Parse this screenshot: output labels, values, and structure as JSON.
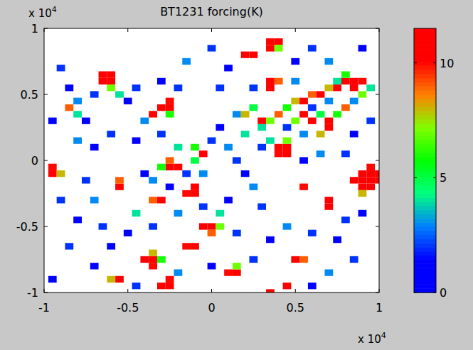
{
  "chart_data": {
    "type": "heatmap",
    "title": "BT1231 forcing(K)",
    "x_multiplier": {
      "text": "x 10",
      "exponent": "4"
    },
    "y_multiplier": {
      "text": "x 10",
      "exponent": "4"
    },
    "xlim": [
      -1,
      1
    ],
    "ylim": [
      -1,
      1
    ],
    "xticks": [
      -1,
      -0.5,
      0,
      0.5,
      1
    ],
    "yticks": [
      -1,
      -0.5,
      0,
      0.5,
      1
    ],
    "cell_size": 0.05,
    "cells": [
      [
        -0.65,
        0.6,
        12
      ],
      [
        -0.6,
        0.6,
        12
      ],
      [
        -0.65,
        0.65,
        11
      ],
      [
        -0.6,
        0.65,
        11
      ],
      [
        -0.25,
        0.4,
        12
      ],
      [
        -0.3,
        0.4,
        11
      ],
      [
        -0.25,
        0.45,
        10
      ],
      [
        0.2,
        0.8,
        12
      ],
      [
        0.25,
        0.8,
        11
      ],
      [
        0.35,
        0.9,
        12
      ],
      [
        0.35,
        0.85,
        11
      ],
      [
        0.4,
        0.9,
        12
      ],
      [
        0.35,
        0.6,
        12
      ],
      [
        0.35,
        0.55,
        11
      ],
      [
        0.4,
        0.6,
        9
      ],
      [
        0.15,
        0.35,
        3
      ],
      [
        0.2,
        0.35,
        8
      ],
      [
        0.25,
        0.4,
        5
      ],
      [
        0.3,
        0.3,
        11
      ],
      [
        0.35,
        0.3,
        7
      ],
      [
        0.3,
        0.25,
        4
      ],
      [
        0.4,
        0.35,
        9
      ],
      [
        0.45,
        0.4,
        6
      ],
      [
        0.5,
        0.45,
        8
      ],
      [
        0.55,
        0.45,
        11
      ],
      [
        0.6,
        0.5,
        9
      ],
      [
        0.65,
        0.5,
        12
      ],
      [
        0.7,
        0.55,
        8
      ],
      [
        0.75,
        0.55,
        11
      ],
      [
        0.8,
        0.6,
        12
      ],
      [
        0.85,
        0.6,
        12
      ],
      [
        0.85,
        0.55,
        11
      ],
      [
        0.9,
        0.6,
        10
      ],
      [
        0.8,
        0.65,
        6
      ],
      [
        0.75,
        0.6,
        4
      ],
      [
        0.7,
        0.45,
        3
      ],
      [
        0.6,
        0.4,
        2
      ],
      [
        0.65,
        0.35,
        5
      ],
      [
        0.55,
        0.35,
        12
      ],
      [
        0.6,
        0.3,
        11
      ],
      [
        0.5,
        0.3,
        7
      ],
      [
        0.45,
        0.25,
        2
      ],
      [
        0.7,
        0.3,
        12
      ],
      [
        0.7,
        0.25,
        11
      ],
      [
        0.75,
        0.35,
        6
      ],
      [
        0.8,
        0.4,
        9
      ],
      [
        0.85,
        0.45,
        3
      ],
      [
        0.9,
        0.5,
        7
      ],
      [
        0.95,
        0.55,
        4
      ],
      [
        0.65,
        0.2,
        8
      ],
      [
        0.55,
        0.2,
        3
      ],
      [
        0.45,
        0.1,
        12
      ],
      [
        0.4,
        0.1,
        12
      ],
      [
        0.45,
        0.05,
        11
      ],
      [
        0.4,
        0.05,
        10
      ],
      [
        0.35,
        0.15,
        4
      ],
      [
        0.95,
        -0.15,
        13
      ],
      [
        0.9,
        -0.15,
        13
      ],
      [
        0.95,
        -0.1,
        13
      ],
      [
        0.9,
        -0.1,
        12
      ],
      [
        0.95,
        -0.2,
        13
      ],
      [
        0.9,
        -0.2,
        12
      ],
      [
        0.85,
        -0.15,
        11
      ],
      [
        0.95,
        -0.05,
        10
      ],
      [
        1.0,
        -0.15,
        13
      ],
      [
        1.0,
        -0.1,
        13
      ],
      [
        -0.25,
        -0.05,
        12
      ],
      [
        -0.2,
        -0.05,
        11
      ],
      [
        -0.25,
        0,
        9
      ],
      [
        -0.1,
        -0.25,
        12
      ],
      [
        -0.15,
        -0.25,
        10
      ],
      [
        -0.1,
        -0.2,
        11
      ],
      [
        -0.3,
        -0.3,
        12
      ],
      [
        -0.35,
        -0.3,
        9
      ],
      [
        -0.95,
        -0.1,
        12
      ],
      [
        -0.95,
        -0.05,
        10
      ],
      [
        -0.9,
        -0.1,
        8
      ],
      [
        -0.55,
        -0.2,
        12
      ],
      [
        -0.55,
        -0.15,
        9
      ],
      [
        0.7,
        -0.3,
        12
      ],
      [
        0.7,
        -0.35,
        11
      ],
      [
        0,
        -0.5,
        12
      ],
      [
        -0.05,
        -0.5,
        11
      ],
      [
        0,
        -0.55,
        9
      ],
      [
        -0.35,
        -0.75,
        12
      ],
      [
        -0.4,
        -0.75,
        11
      ],
      [
        -0.35,
        -0.8,
        10
      ],
      [
        -0.3,
        -0.75,
        6
      ],
      [
        -0.25,
        -0.95,
        12
      ],
      [
        -0.3,
        -0.95,
        11
      ],
      [
        -0.25,
        -0.9,
        10
      ],
      [
        -0.55,
        -0.9,
        11
      ],
      [
        -0.6,
        -0.9,
        8
      ],
      [
        0.15,
        -0.85,
        12
      ],
      [
        0.1,
        -0.85,
        10
      ],
      [
        0.5,
        -0.75,
        11
      ],
      [
        0.55,
        -0.75,
        9
      ],
      [
        -0.1,
        -0.65,
        12
      ],
      [
        -0.15,
        -0.65,
        10
      ],
      [
        -0.05,
        0.05,
        11
      ],
      [
        -0.1,
        0.1,
        6
      ],
      [
        -0.35,
        0.35,
        12
      ],
      [
        0.55,
        -0.2,
        10
      ],
      [
        0.45,
        -0.95,
        11
      ],
      [
        0.35,
        -1.0,
        12
      ],
      [
        -0.85,
        0.4,
        9
      ],
      [
        -0.8,
        0.35,
        4
      ],
      [
        -0.6,
        0.55,
        7
      ],
      [
        0.4,
        0.85,
        7
      ],
      [
        -0.25,
        0.35,
        6
      ],
      [
        0.45,
        0.15,
        7
      ],
      [
        -0.3,
        -0.05,
        6
      ],
      [
        0.9,
        -0.25,
        8
      ],
      [
        0.05,
        -0.5,
        7
      ],
      [
        -0.35,
        -0.7,
        8
      ],
      [
        0.15,
        -0.8,
        7
      ],
      [
        -0.9,
        0.7,
        2
      ],
      [
        -0.85,
        0.55,
        1
      ],
      [
        -0.8,
        0.45,
        3
      ],
      [
        -0.75,
        0.3,
        1
      ],
      [
        -0.7,
        0.5,
        2
      ],
      [
        -0.55,
        0.5,
        4
      ],
      [
        -0.5,
        0.45,
        1
      ],
      [
        -0.45,
        0.55,
        2
      ],
      [
        -0.4,
        0.3,
        3
      ],
      [
        -0.45,
        0.15,
        1
      ],
      [
        -0.6,
        0.2,
        2
      ],
      [
        -0.7,
        0.1,
        1
      ],
      [
        -0.8,
        0.15,
        3
      ],
      [
        -0.95,
        0.3,
        1
      ],
      [
        -0.9,
        -0.3,
        2
      ],
      [
        -0.8,
        -0.45,
        1
      ],
      [
        -0.7,
        -0.3,
        3
      ],
      [
        -0.65,
        -0.5,
        2
      ],
      [
        -0.5,
        -0.55,
        1
      ],
      [
        -0.45,
        -0.4,
        4
      ],
      [
        -0.35,
        -0.5,
        2
      ],
      [
        -0.2,
        -0.4,
        3
      ],
      [
        -0.15,
        -0.1,
        2
      ],
      [
        -0.1,
        0.0,
        5
      ],
      [
        -0.05,
        -0.1,
        3
      ],
      [
        0,
        0.15,
        2
      ],
      [
        0.05,
        0.25,
        1
      ],
      [
        0.1,
        0.1,
        3
      ],
      [
        0.15,
        0.0,
        2
      ],
      [
        0.2,
        -0.1,
        1
      ],
      [
        0.25,
        -0.2,
        3
      ],
      [
        0.3,
        -0.35,
        2
      ],
      [
        0.1,
        -0.3,
        1
      ],
      [
        0.15,
        -0.55,
        2
      ],
      [
        0.35,
        -0.6,
        1
      ],
      [
        0.45,
        -0.5,
        3
      ],
      [
        0.6,
        -0.55,
        2
      ],
      [
        0.75,
        -0.6,
        1
      ],
      [
        0.8,
        -0.45,
        2
      ],
      [
        0.9,
        -0.4,
        1
      ],
      [
        0.85,
        -0.75,
        2
      ],
      [
        0.7,
        -0.85,
        3
      ],
      [
        0.6,
        -0.95,
        1
      ],
      [
        0.25,
        -0.75,
        2
      ],
      [
        0.0,
        -0.8,
        1
      ],
      [
        -0.2,
        -0.85,
        3
      ],
      [
        -0.45,
        -0.95,
        2
      ],
      [
        -0.7,
        -0.8,
        1
      ],
      [
        -0.85,
        -0.65,
        2
      ],
      [
        -0.95,
        -0.9,
        1
      ],
      [
        0.05,
        0.55,
        2
      ],
      [
        0.1,
        0.7,
        1
      ],
      [
        0.0,
        0.85,
        2
      ],
      [
        -0.15,
        0.75,
        3
      ],
      [
        -0.3,
        0.6,
        1
      ],
      [
        -0.2,
        0.55,
        2
      ],
      [
        0.5,
        0.75,
        1
      ],
      [
        0.6,
        0.85,
        2
      ],
      [
        0.7,
        0.75,
        3
      ],
      [
        0.9,
        0.85,
        1
      ],
      [
        0.95,
        0.3,
        2
      ],
      [
        0.85,
        0.2,
        1
      ],
      [
        0.5,
        0.6,
        3
      ],
      [
        0.25,
        0.55,
        2
      ],
      [
        0.2,
        0.2,
        4
      ],
      [
        0.3,
        0.1,
        2
      ],
      [
        0.55,
        0.0,
        1
      ],
      [
        0.65,
        0.05,
        3
      ],
      [
        0.8,
        0.05,
        2
      ],
      [
        -0.3,
        0.2,
        2
      ],
      [
        -0.2,
        0.1,
        4
      ],
      [
        -0.35,
        -0.15,
        3
      ],
      [
        -0.25,
        -0.2,
        1
      ],
      [
        -0.05,
        -0.35,
        2
      ],
      [
        0.05,
        -0.4,
        4
      ],
      [
        -0.6,
        -0.65,
        1
      ],
      [
        -0.75,
        -0.15,
        2
      ],
      [
        -0.4,
        -0.1,
        1
      ]
    ],
    "colorbar": {
      "lim": [
        0,
        11.5
      ],
      "ticks": [
        0,
        5,
        10
      ]
    }
  }
}
